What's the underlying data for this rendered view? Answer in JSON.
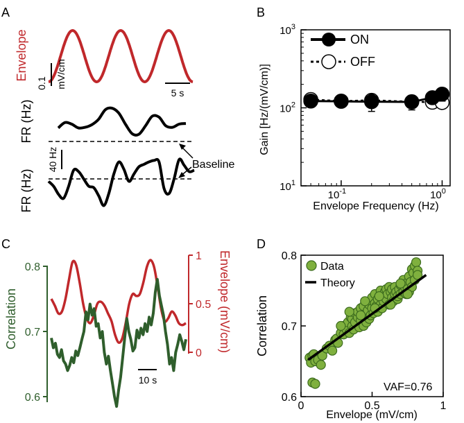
{
  "colors": {
    "envelope_red": "#c0282b",
    "correlation_green": "#2f5e2c",
    "marker_green": "#7fb03e",
    "marker_green_edge": "#3c6b1e",
    "black": "#000000"
  },
  "panel_labels": {
    "a": "A",
    "b": "B",
    "c": "C",
    "d": "D"
  },
  "chart_data": [
    {
      "panel": "A",
      "type": "line",
      "labels": {
        "envelope": "Envelope",
        "amp_scale": "0.1",
        "amp_unit": "mV/cm",
        "time_scale": "5 s",
        "fr_top": "FR (Hz)",
        "fr_bottom": "FR (Hz)",
        "fr_scale": "40 Hz",
        "baseline": "Baseline"
      },
      "envelope_cycles": 3,
      "fr_on": [
        0.62,
        0.45,
        0.5,
        0.62,
        0.6,
        0.52,
        0.35,
        0.05,
        0.0,
        0.15,
        0.5,
        0.8,
        0.82,
        0.55,
        0.25,
        0.28,
        0.55,
        0.6,
        0.5,
        0.48
      ],
      "fr_off": [
        0.45,
        0.55,
        0.72,
        0.8,
        0.55,
        0.22,
        0.25,
        0.4,
        0.55,
        0.58,
        0.75,
        0.95,
        0.7,
        0.3,
        0.05,
        0.2,
        0.45,
        0.3,
        0.15,
        0.1,
        0.05,
        0.02,
        0.05,
        0.6,
        0.7,
        0.4,
        0.0,
        0.12,
        0.25,
        0.22
      ]
    },
    {
      "panel": "B",
      "type": "scatter",
      "xlabel": "Envelope Frequency (Hz)",
      "ylabel": "Gain [Hz/(mV/cm)]",
      "xscale": "log",
      "yscale": "log",
      "xlim": [
        0.04,
        1.2
      ],
      "ylim": [
        10,
        1000
      ],
      "x_ticks": [
        {
          "value": 0.1,
          "base": "10",
          "exp": "-1"
        },
        {
          "value": 1,
          "base": "10",
          "exp": "0"
        }
      ],
      "y_ticks": [
        {
          "value": 10,
          "base": "10",
          "exp": "1"
        },
        {
          "value": 100,
          "base": "10",
          "exp": "2"
        },
        {
          "value": 1000,
          "base": "10",
          "exp": "3"
        }
      ],
      "legend_position": "top-left",
      "series": [
        {
          "name": "ON",
          "marker": "filled",
          "x": [
            0.05,
            0.1,
            0.2,
            0.5,
            0.8,
            1.0
          ],
          "y": [
            122,
            121,
            120,
            119,
            135,
            150
          ],
          "err": [
            8,
            10,
            30,
            25,
            18,
            28
          ]
        },
        {
          "name": "OFF",
          "marker": "open",
          "x": [
            0.05,
            0.1,
            0.2,
            0.5,
            0.8,
            1.0
          ],
          "y": [
            128,
            122,
            125,
            120,
            118,
            117
          ],
          "err": [
            10,
            8,
            12,
            10,
            10,
            12
          ]
        }
      ]
    },
    {
      "panel": "C",
      "type": "line",
      "ylabel_left": "Correlation",
      "ylabel_right": "Envelope (mV/cm)",
      "left_ticks": [
        "0.6",
        "0.7",
        "0.8"
      ],
      "right_ticks": [
        "0",
        "0.5",
        "1"
      ],
      "ylim_left": [
        0.6,
        0.8
      ],
      "ylim_right": [
        0,
        1
      ],
      "time_scale": "10 s",
      "envelope": [
        0.55,
        0.48,
        0.4,
        0.42,
        0.55,
        0.75,
        0.93,
        0.9,
        0.72,
        0.5,
        0.35,
        0.3,
        0.38,
        0.5,
        0.52,
        0.48,
        0.4,
        0.32,
        0.18,
        0.1,
        0.14,
        0.3,
        0.5,
        0.6,
        0.58,
        0.6,
        0.72,
        0.88,
        0.95,
        0.88,
        0.68,
        0.45,
        0.32,
        0.35,
        0.42,
        0.38,
        0.3,
        0.28,
        0.3
      ],
      "correlation": [
        0.69,
        0.675,
        0.682,
        0.665,
        0.66,
        0.672,
        0.655,
        0.65,
        0.64,
        0.648,
        0.66,
        0.652,
        0.67,
        0.663,
        0.675,
        0.688,
        0.7,
        0.73,
        0.718,
        0.742,
        0.725,
        0.735,
        0.708,
        0.712,
        0.69,
        0.7,
        0.668,
        0.65,
        0.662,
        0.64,
        0.62,
        0.6,
        0.585,
        0.61,
        0.63,
        0.66,
        0.69,
        0.72,
        0.7,
        0.688,
        0.67,
        0.675,
        0.702,
        0.69,
        0.705,
        0.695,
        0.712,
        0.7,
        0.722,
        0.71,
        0.728,
        0.76,
        0.78,
        0.755,
        0.74,
        0.725,
        0.7,
        0.68,
        0.65,
        0.66,
        0.64,
        0.668,
        0.68,
        0.695,
        0.685,
        0.672,
        0.688
      ]
    },
    {
      "panel": "D",
      "type": "scatter",
      "xlabel": "Envelope (mV/cm)",
      "ylabel": "Correlation",
      "xlim": [
        0,
        1
      ],
      "ylim": [
        0.6,
        0.8
      ],
      "x_ticks": [
        "0",
        "0.5",
        "1"
      ],
      "y_ticks": [
        "0.6",
        "0.7",
        "0.8"
      ],
      "legend_position": "top-left",
      "legend": {
        "data": "Data",
        "theory": "Theory"
      },
      "annotation": "VAF=0.76",
      "theory_line": {
        "x": [
          0.05,
          0.88
        ],
        "y": [
          0.652,
          0.772
        ]
      },
      "points": {
        "x": [
          0.06,
          0.07,
          0.08,
          0.09,
          0.1,
          0.12,
          0.14,
          0.15,
          0.08,
          0.1,
          0.18,
          0.2,
          0.22,
          0.24,
          0.25,
          0.26,
          0.28,
          0.3,
          0.3,
          0.32,
          0.33,
          0.34,
          0.35,
          0.36,
          0.36,
          0.37,
          0.38,
          0.38,
          0.4,
          0.4,
          0.41,
          0.42,
          0.42,
          0.43,
          0.44,
          0.44,
          0.45,
          0.46,
          0.46,
          0.47,
          0.48,
          0.48,
          0.49,
          0.5,
          0.5,
          0.51,
          0.52,
          0.52,
          0.53,
          0.54,
          0.54,
          0.55,
          0.56,
          0.56,
          0.57,
          0.58,
          0.58,
          0.59,
          0.6,
          0.6,
          0.61,
          0.62,
          0.62,
          0.63,
          0.64,
          0.64,
          0.65,
          0.66,
          0.66,
          0.67,
          0.68,
          0.68,
          0.69,
          0.7,
          0.7,
          0.71,
          0.72,
          0.72,
          0.73,
          0.74,
          0.74,
          0.75,
          0.76,
          0.76,
          0.77,
          0.78,
          0.78,
          0.79,
          0.8,
          0.8,
          0.81,
          0.82,
          0.82,
          0.28,
          0.34,
          0.45,
          0.55,
          0.63,
          0.7,
          0.75,
          0.52,
          0.42
        ],
        "y": [
          0.655,
          0.648,
          0.658,
          0.66,
          0.65,
          0.652,
          0.645,
          0.658,
          0.62,
          0.618,
          0.668,
          0.672,
          0.665,
          0.68,
          0.682,
          0.676,
          0.69,
          0.688,
          0.7,
          0.695,
          0.705,
          0.69,
          0.712,
          0.7,
          0.71,
          0.695,
          0.718,
          0.705,
          0.712,
          0.72,
          0.698,
          0.725,
          0.708,
          0.715,
          0.7,
          0.728,
          0.712,
          0.718,
          0.705,
          0.722,
          0.73,
          0.71,
          0.715,
          0.725,
          0.74,
          0.718,
          0.732,
          0.745,
          0.728,
          0.72,
          0.738,
          0.742,
          0.73,
          0.75,
          0.725,
          0.74,
          0.735,
          0.748,
          0.752,
          0.738,
          0.745,
          0.73,
          0.755,
          0.748,
          0.74,
          0.752,
          0.735,
          0.745,
          0.755,
          0.748,
          0.738,
          0.742,
          0.752,
          0.758,
          0.745,
          0.76,
          0.748,
          0.765,
          0.755,
          0.745,
          0.76,
          0.752,
          0.77,
          0.748,
          0.762,
          0.78,
          0.755,
          0.775,
          0.765,
          0.785,
          0.79,
          0.778,
          0.772,
          0.7,
          0.72,
          0.735,
          0.742,
          0.73,
          0.76,
          0.745,
          0.725,
          0.715
        ]
      }
    }
  ]
}
